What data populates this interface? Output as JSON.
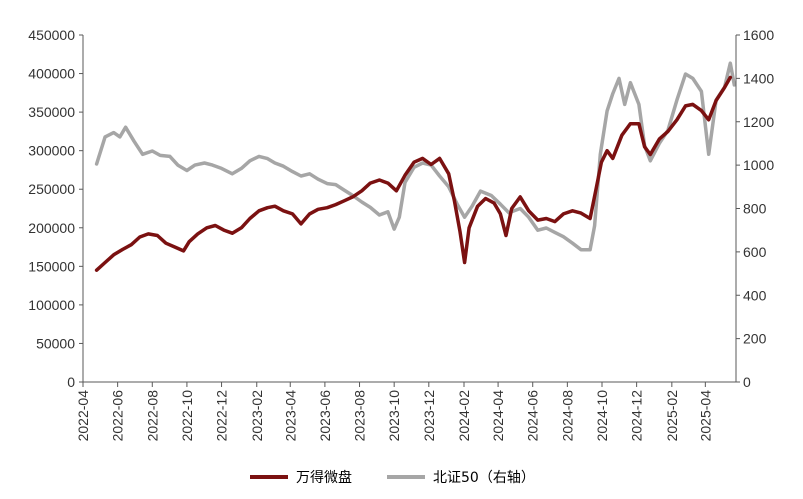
{
  "chart_data": {
    "type": "line",
    "title": "",
    "grid": false,
    "legend_position": "bottom",
    "x_ticks": [
      "2022-04",
      "2022-06",
      "2022-08",
      "2022-10",
      "2022-12",
      "2023-02",
      "2023-04",
      "2023-06",
      "2023-08",
      "2023-10",
      "2023-12",
      "2024-02",
      "2024-04",
      "2024-06",
      "2024-08",
      "2024-10",
      "2024-12",
      "2025-02",
      "2025-04"
    ],
    "y_left": {
      "range": [
        0,
        450000
      ],
      "ticks": [
        "0",
        "50000",
        "100000",
        "150000",
        "200000",
        "250000",
        "300000",
        "350000",
        "400000",
        "450000"
      ]
    },
    "y_right": {
      "range": [
        0,
        1600
      ],
      "ticks": [
        "0",
        "200",
        "400",
        "600",
        "800",
        "1000",
        "1200",
        "1400",
        "1600"
      ]
    },
    "series": [
      {
        "name": "万得微盘",
        "axis": "left",
        "color": "#7b1111",
        "points": [
          [
            "2022-04-25",
            145000
          ],
          [
            "2022-05-10",
            155000
          ],
          [
            "2022-05-25",
            165000
          ],
          [
            "2022-06-10",
            172000
          ],
          [
            "2022-06-25",
            178000
          ],
          [
            "2022-07-10",
            188000
          ],
          [
            "2022-07-25",
            192000
          ],
          [
            "2022-08-10",
            190000
          ],
          [
            "2022-08-25",
            180000
          ],
          [
            "2022-09-10",
            175000
          ],
          [
            "2022-09-25",
            170000
          ],
          [
            "2022-10-05",
            182000
          ],
          [
            "2022-10-20",
            192000
          ],
          [
            "2022-11-05",
            200000
          ],
          [
            "2022-11-20",
            203000
          ],
          [
            "2022-12-05",
            197000
          ],
          [
            "2022-12-20",
            193000
          ],
          [
            "2023-01-05",
            200000
          ],
          [
            "2023-01-20",
            212000
          ],
          [
            "2023-02-05",
            222000
          ],
          [
            "2023-02-20",
            226000
          ],
          [
            "2023-03-05",
            228000
          ],
          [
            "2023-03-20",
            222000
          ],
          [
            "2023-04-05",
            218000
          ],
          [
            "2023-04-20",
            205000
          ],
          [
            "2023-05-05",
            218000
          ],
          [
            "2023-05-20",
            224000
          ],
          [
            "2023-06-05",
            226000
          ],
          [
            "2023-06-20",
            230000
          ],
          [
            "2023-07-05",
            235000
          ],
          [
            "2023-07-20",
            240000
          ],
          [
            "2023-08-05",
            248000
          ],
          [
            "2023-08-20",
            258000
          ],
          [
            "2023-09-05",
            262000
          ],
          [
            "2023-09-20",
            258000
          ],
          [
            "2023-10-05",
            248000
          ],
          [
            "2023-10-20",
            268000
          ],
          [
            "2023-11-05",
            285000
          ],
          [
            "2023-11-20",
            290000
          ],
          [
            "2023-12-05",
            282000
          ],
          [
            "2023-12-20",
            290000
          ],
          [
            "2024-01-05",
            270000
          ],
          [
            "2024-01-15",
            235000
          ],
          [
            "2024-01-25",
            195000
          ],
          [
            "2024-02-02",
            155000
          ],
          [
            "2024-02-10",
            200000
          ],
          [
            "2024-02-25",
            228000
          ],
          [
            "2024-03-10",
            238000
          ],
          [
            "2024-03-25",
            232000
          ],
          [
            "2024-04-05",
            218000
          ],
          [
            "2024-04-15",
            190000
          ],
          [
            "2024-04-25",
            225000
          ],
          [
            "2024-05-10",
            240000
          ],
          [
            "2024-05-25",
            222000
          ],
          [
            "2024-06-10",
            210000
          ],
          [
            "2024-06-25",
            212000
          ],
          [
            "2024-07-10",
            208000
          ],
          [
            "2024-07-25",
            218000
          ],
          [
            "2024-08-10",
            222000
          ],
          [
            "2024-08-25",
            219000
          ],
          [
            "2024-09-10",
            212000
          ],
          [
            "2024-09-20",
            248000
          ],
          [
            "2024-09-30",
            285000
          ],
          [
            "2024-10-10",
            300000
          ],
          [
            "2024-10-20",
            290000
          ],
          [
            "2024-11-05",
            320000
          ],
          [
            "2024-11-20",
            335000
          ],
          [
            "2024-12-05",
            335000
          ],
          [
            "2024-12-15",
            305000
          ],
          [
            "2024-12-25",
            295000
          ],
          [
            "2025-01-10",
            315000
          ],
          [
            "2025-01-25",
            325000
          ],
          [
            "2025-02-10",
            340000
          ],
          [
            "2025-02-25",
            358000
          ],
          [
            "2025-03-10",
            360000
          ],
          [
            "2025-03-25",
            352000
          ],
          [
            "2025-04-07",
            340000
          ],
          [
            "2025-04-20",
            365000
          ],
          [
            "2025-05-05",
            382000
          ],
          [
            "2025-05-15",
            395000
          ]
        ]
      },
      {
        "name": "北证50（右轴）",
        "axis": "right",
        "color": "#a6a6a6",
        "points": [
          [
            "2022-04-25",
            1005
          ],
          [
            "2022-05-10",
            1130
          ],
          [
            "2022-05-25",
            1150
          ],
          [
            "2022-06-05",
            1130
          ],
          [
            "2022-06-15",
            1175
          ],
          [
            "2022-06-30",
            1110
          ],
          [
            "2022-07-15",
            1050
          ],
          [
            "2022-08-01",
            1065
          ],
          [
            "2022-08-15",
            1045
          ],
          [
            "2022-09-01",
            1040
          ],
          [
            "2022-09-15",
            1000
          ],
          [
            "2022-10-01",
            975
          ],
          [
            "2022-10-15",
            1000
          ],
          [
            "2022-11-01",
            1010
          ],
          [
            "2022-11-15",
            1000
          ],
          [
            "2022-12-01",
            985
          ],
          [
            "2022-12-20",
            960
          ],
          [
            "2023-01-05",
            985
          ],
          [
            "2023-01-20",
            1020
          ],
          [
            "2023-02-05",
            1040
          ],
          [
            "2023-02-20",
            1030
          ],
          [
            "2023-03-05",
            1010
          ],
          [
            "2023-03-20",
            995
          ],
          [
            "2023-04-05",
            970
          ],
          [
            "2023-04-20",
            950
          ],
          [
            "2023-05-05",
            960
          ],
          [
            "2023-05-20",
            935
          ],
          [
            "2023-06-05",
            915
          ],
          [
            "2023-06-20",
            910
          ],
          [
            "2023-07-05",
            885
          ],
          [
            "2023-07-20",
            860
          ],
          [
            "2023-08-05",
            830
          ],
          [
            "2023-08-20",
            805
          ],
          [
            "2023-09-05",
            770
          ],
          [
            "2023-09-20",
            785
          ],
          [
            "2023-10-01",
            705
          ],
          [
            "2023-10-10",
            760
          ],
          [
            "2023-10-20",
            920
          ],
          [
            "2023-11-05",
            990
          ],
          [
            "2023-11-20",
            1010
          ],
          [
            "2023-12-05",
            1000
          ],
          [
            "2023-12-20",
            950
          ],
          [
            "2024-01-05",
            900
          ],
          [
            "2024-01-20",
            820
          ],
          [
            "2024-02-02",
            760
          ],
          [
            "2024-02-15",
            810
          ],
          [
            "2024-03-01",
            880
          ],
          [
            "2024-03-20",
            860
          ],
          [
            "2024-04-05",
            820
          ],
          [
            "2024-04-20",
            780
          ],
          [
            "2024-05-10",
            800
          ],
          [
            "2024-05-25",
            760
          ],
          [
            "2024-06-10",
            700
          ],
          [
            "2024-06-25",
            710
          ],
          [
            "2024-07-10",
            690
          ],
          [
            "2024-07-25",
            670
          ],
          [
            "2024-08-10",
            640
          ],
          [
            "2024-08-25",
            610
          ],
          [
            "2024-09-10",
            610
          ],
          [
            "2024-09-18",
            720
          ],
          [
            "2024-09-28",
            1050
          ],
          [
            "2024-10-10",
            1250
          ],
          [
            "2024-10-20",
            1330
          ],
          [
            "2024-10-31",
            1400
          ],
          [
            "2024-11-10",
            1280
          ],
          [
            "2024-11-20",
            1380
          ],
          [
            "2024-12-05",
            1280
          ],
          [
            "2024-12-15",
            1090
          ],
          [
            "2024-12-25",
            1020
          ],
          [
            "2025-01-10",
            1100
          ],
          [
            "2025-01-25",
            1160
          ],
          [
            "2025-02-10",
            1300
          ],
          [
            "2025-02-25",
            1420
          ],
          [
            "2025-03-10",
            1400
          ],
          [
            "2025-03-25",
            1340
          ],
          [
            "2025-04-07",
            1050
          ],
          [
            "2025-04-20",
            1300
          ],
          [
            "2025-05-05",
            1360
          ],
          [
            "2025-05-15",
            1470
          ],
          [
            "2025-05-22",
            1370
          ]
        ]
      }
    ]
  }
}
